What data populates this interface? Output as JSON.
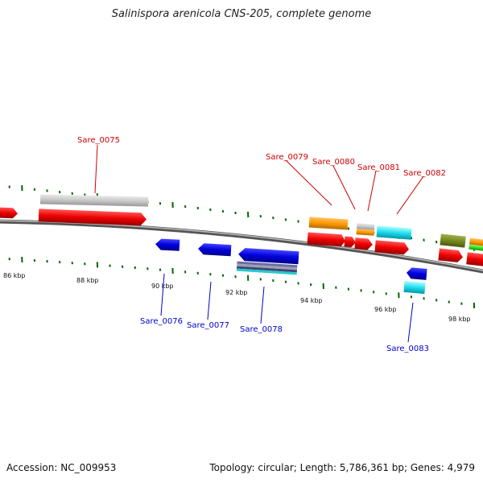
{
  "title": "Salinispora arenicola CNS-205, complete genome",
  "footer": {
    "accession": "Accession: NC_009953",
    "summary": "Topology: circular; Length: 5,786,361 bp; Genes: 4,979"
  },
  "ruler": {
    "labels": [
      "86 kbp",
      "88 kbp",
      "90 kbp",
      "92 kbp",
      "94 kbp",
      "96 kbp",
      "98 kbp"
    ]
  },
  "genes": {
    "forward": [
      "Sare_0075",
      "Sare_0079",
      "Sare_0080",
      "Sare_0081",
      "Sare_0082"
    ],
    "reverse": [
      "Sare_0076",
      "Sare_0077",
      "Sare_0078",
      "Sare_0083"
    ]
  },
  "colors": {
    "forward_label": "#cc0000",
    "reverse_label": "#0000cc",
    "cds_forward": "#ee0000",
    "cds_reverse": "#0000dd",
    "tick": "#006600",
    "backbone": "#777777"
  }
}
